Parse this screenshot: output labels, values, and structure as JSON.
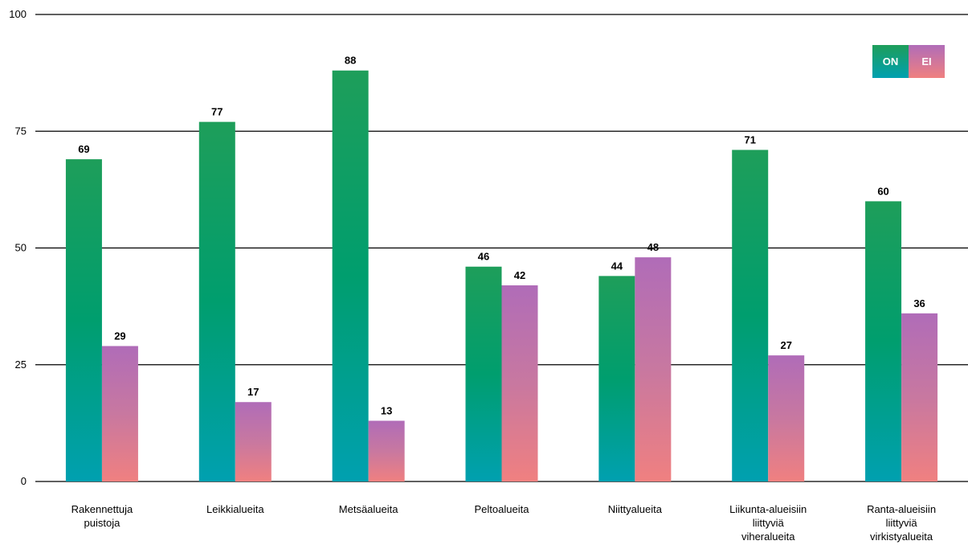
{
  "chart_data": {
    "type": "bar",
    "categories": [
      [
        "Rakennettuja",
        "puistoja"
      ],
      [
        "Leikkialueita"
      ],
      [
        "Metsäalueita"
      ],
      [
        "Peltoalueita"
      ],
      [
        "Niittyalueita"
      ],
      [
        "Liikunta-alueisiin",
        "liittyviä",
        "viheralueita"
      ],
      [
        "Ranta-alueisiin",
        "liittyviä",
        "virkistyalueita"
      ]
    ],
    "series": [
      {
        "name": "ON",
        "values": [
          69,
          77,
          88,
          46,
          44,
          71,
          60
        ],
        "color_top": "#1e9e5a",
        "color_mid": "#009e6e",
        "color_bottom": "#00a0b0"
      },
      {
        "name": "EI",
        "values": [
          29,
          17,
          13,
          42,
          48,
          27,
          36
        ],
        "color_top": "#b06cb8",
        "color_mid": "#c878a0",
        "color_bottom": "#f08080"
      }
    ],
    "yticks": [
      "0",
      "25",
      "50",
      "75",
      "100"
    ],
    "ylim": [
      0,
      100
    ],
    "grid": true,
    "legend": "top-right",
    "title": "",
    "xlabel": "",
    "ylabel": ""
  }
}
